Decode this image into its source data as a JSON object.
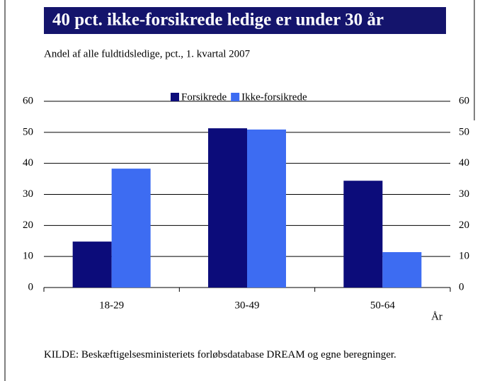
{
  "chart_data": {
    "type": "bar",
    "title": "40 pct. ikke-forsikrede ledige er under 30 år",
    "subtitle": "Andel af alle fuldtidsledige, pct., 1. kvartal 2007",
    "categories": [
      "18-29",
      "30-49",
      "50-64"
    ],
    "series": [
      {
        "name": "Forsikrede",
        "color": "#0c0c7a",
        "values": [
          14.8,
          51.3,
          34.4
        ]
      },
      {
        "name": "Ikke-forsikrede",
        "color": "#3d6cf2",
        "values": [
          38.3,
          50.9,
          11.4
        ]
      }
    ],
    "xlabel": "År",
    "ylim": [
      0,
      60
    ],
    "yticks": [
      0,
      10,
      20,
      30,
      40,
      50,
      60
    ],
    "y2lim": [
      0,
      60
    ],
    "y2ticks": [
      0,
      10,
      20,
      30,
      40,
      50,
      60
    ],
    "grid": true,
    "source": "KILDE: Beskæftigelsesministeriets forløbsdatabase DREAM og egne beregninger."
  }
}
